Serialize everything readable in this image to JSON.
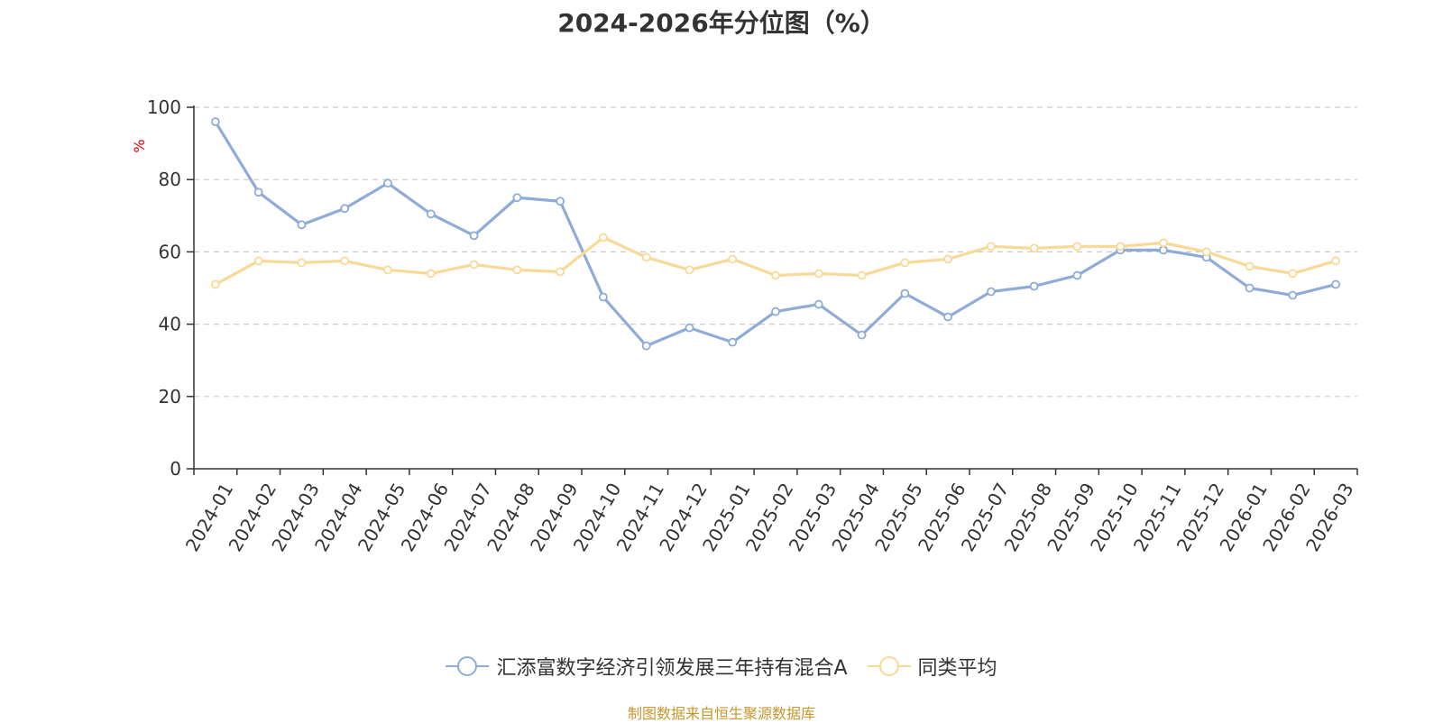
{
  "chart_data": {
    "type": "line",
    "title": "2024-2026年分位图（%）",
    "ylabel": "%",
    "xlabel": "",
    "ylim": [
      0,
      100
    ],
    "yticks": [
      0,
      20,
      40,
      60,
      80,
      100
    ],
    "grid": true,
    "categories": [
      "2024-01",
      "2024-02",
      "2024-03",
      "2024-04",
      "2024-05",
      "2024-06",
      "2024-07",
      "2024-08",
      "2024-09",
      "2024-10",
      "2024-11",
      "2024-12",
      "2025-01",
      "2025-02",
      "2025-03",
      "2025-04",
      "2025-05",
      "2025-06",
      "2025-07",
      "2025-08",
      "2025-09",
      "2025-10",
      "2025-11",
      "2025-12",
      "2026-01",
      "2026-02",
      "2026-03"
    ],
    "series": [
      {
        "name": "汇添富数字经济引领发展三年持有混合A",
        "color": "#8facd8",
        "values": [
          96,
          76.5,
          67.5,
          72,
          79,
          70.5,
          64.5,
          75,
          74,
          47.5,
          34,
          39,
          35,
          43.5,
          45.5,
          37,
          48.5,
          42,
          49,
          50.5,
          53.5,
          60.5,
          60.5,
          58.5,
          50,
          48,
          51
        ]
      },
      {
        "name": "同类平均",
        "color": "#f9d996",
        "values": [
          51,
          57.5,
          57,
          57.5,
          55,
          54,
          56.5,
          55,
          54.5,
          64,
          58.5,
          55,
          58,
          53.5,
          54,
          53.5,
          57,
          58,
          61.5,
          61,
          61.5,
          61.5,
          62.5,
          60,
          56,
          54,
          57.5
        ]
      }
    ],
    "legend_position": "bottom-center"
  },
  "source": "制图数据来自恒生聚源数据库",
  "colors": {
    "axis": "#333333",
    "grid": "#cccccc",
    "ylabel": "#e60000",
    "source": "#c8962c"
  }
}
